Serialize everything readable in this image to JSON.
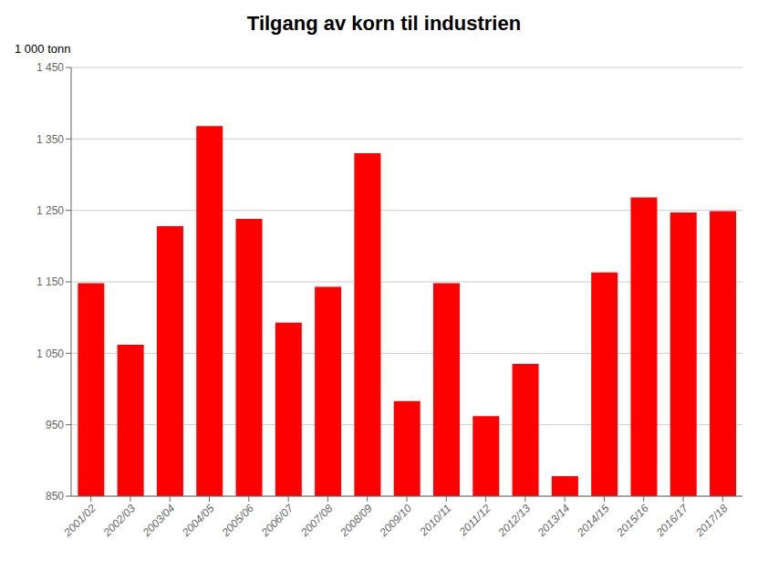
{
  "chart_data": {
    "type": "bar",
    "title": "Tilgang av korn til industrien",
    "ylabel": "1 000 tonn",
    "categories": [
      "2001/02",
      "2002/03",
      "2003/04",
      "2004/05",
      "2005/06",
      "2006/07",
      "2007/08",
      "2008/09",
      "2009/10",
      "2010/11",
      "2011/12",
      "2012/13",
      "2013/14",
      "2014/15",
      "2015/16",
      "2016/17",
      "2017/18"
    ],
    "values": [
      1148,
      1062,
      1228,
      1368,
      1238,
      1093,
      1143,
      1330,
      983,
      1148,
      962,
      1035,
      878,
      1163,
      1268,
      1247,
      1249
    ],
    "color": "#ff0000",
    "ylim": [
      850,
      1450
    ],
    "yticks": [
      850,
      950,
      {
        "value": 1050,
        "label": "1 050"
      },
      {
        "value": 1150,
        "label": "1 150"
      },
      {
        "value": 1250,
        "label": "1 250"
      },
      {
        "value": 1350,
        "label": "1 350"
      },
      {
        "value": 1450,
        "label": "1 450"
      }
    ],
    "grid": true
  }
}
